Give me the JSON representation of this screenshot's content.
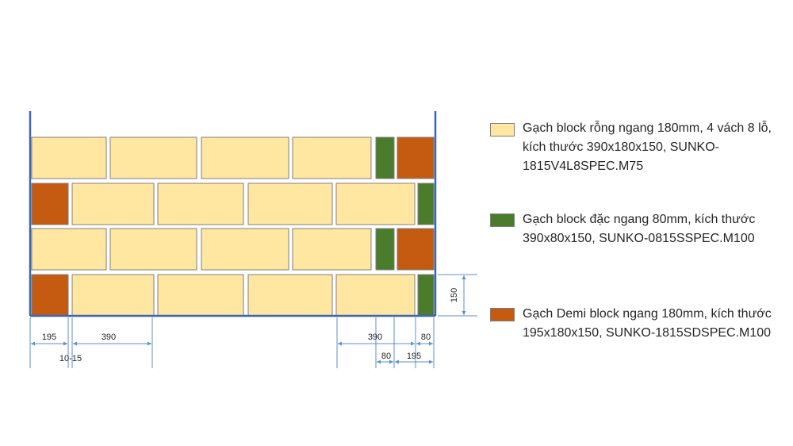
{
  "colors": {
    "hollow_block": "#ffe6a1",
    "solid_block": "#4b7c2b",
    "demi_block": "#c55a11",
    "frame": "#3a66b3",
    "dimension": "#5b8fd6",
    "brick_border": "#7f7f7f"
  },
  "legend": [
    {
      "color_key": "hollow_block",
      "lines": [
        "Gạch block rỗng ngang 180mm, 4 vách 8 lỗ,",
        "kích thước 390x180x150,  SUNKO-",
        "1815V4L8SPEC.M75"
      ]
    },
    {
      "color_key": "solid_block",
      "lines": [
        "Gạch block đặc ngang 80mm, kích thước",
        "390x80x150, SUNKO-0815SSPEC.M100"
      ]
    },
    {
      "color_key": "demi_block",
      "lines": [
        "Gạch Demi block ngang 180mm, kích thước",
        "195x180x150, SUNKO-1815SDSPEC.M100"
      ]
    }
  ],
  "wall": {
    "courses": [
      [
        "hollow_block",
        "hollow_block",
        "hollow_block",
        "hollow_block",
        "solid_block",
        "demi_block"
      ],
      [
        "demi_block",
        "hollow_block",
        "hollow_block",
        "hollow_block",
        "hollow_block",
        "solid_block"
      ],
      [
        "hollow_block",
        "hollow_block",
        "hollow_block",
        "hollow_block",
        "solid_block",
        "demi_block"
      ],
      [
        "demi_block",
        "hollow_block",
        "hollow_block",
        "hollow_block",
        "hollow_block",
        "solid_block"
      ]
    ]
  },
  "dimensions": {
    "demi_left": "195",
    "joint": "10-15",
    "block_left": "390",
    "block_right": "390",
    "solid_right_top": "80",
    "solid_right_bottom": "80",
    "demi_right": "195",
    "height": "150"
  }
}
